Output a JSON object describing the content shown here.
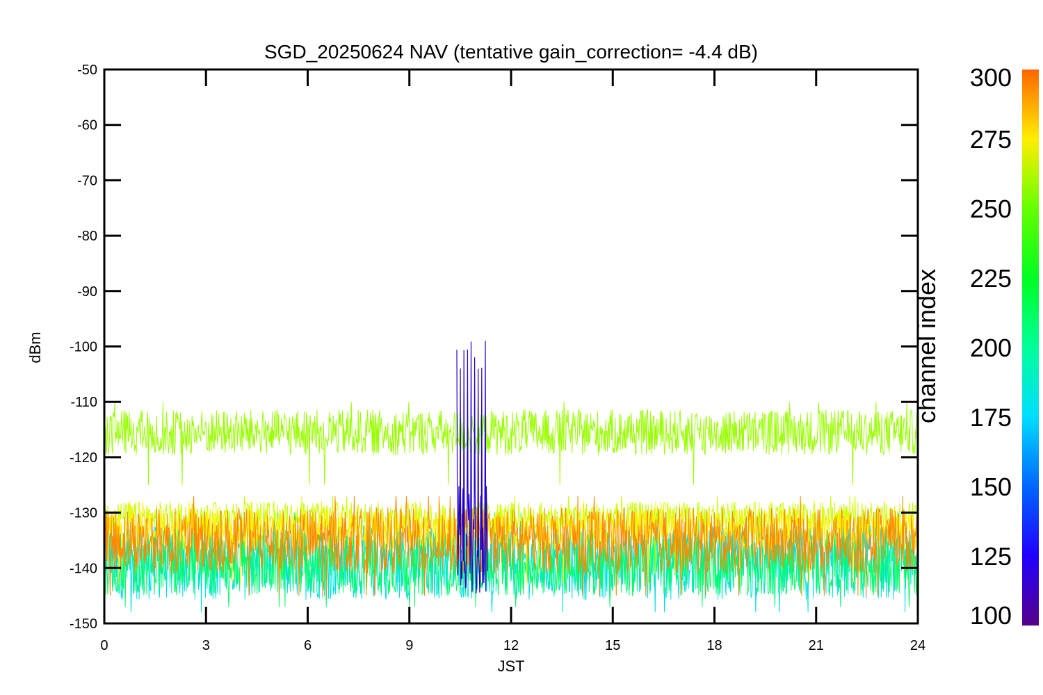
{
  "chart_data": {
    "type": "line",
    "title": "SGD_20250624 NAV (tentative gain_correction= -4.4 dB)",
    "xlabel": "JST",
    "ylabel": "dBm",
    "xlim": [
      0,
      24
    ],
    "ylim": [
      -150,
      -50
    ],
    "x_ticks": [
      "0",
      "3",
      "6",
      "9",
      "12",
      "15",
      "18",
      "21",
      "24"
    ],
    "x_tick_values": [
      0,
      3,
      6,
      9,
      12,
      15,
      18,
      21,
      24
    ],
    "y_ticks": [
      "-50",
      "-60",
      "-70",
      "-80",
      "-90",
      "-100",
      "-110",
      "-120",
      "-130",
      "-140",
      "-150"
    ],
    "y_tick_values": [
      -50,
      -60,
      -70,
      -80,
      -90,
      -100,
      -110,
      -120,
      -130,
      -140,
      -150
    ],
    "grid": false,
    "series": [
      {
        "channel_index": 258,
        "color": "#99ff00",
        "mean_dBm": -115.5,
        "min_dBm": -125,
        "max_dBm": -110,
        "x_range": [
          0,
          24
        ]
      },
      {
        "channel_index": 290,
        "color": "#ff8800",
        "mean_dBm": -135,
        "min_dBm": -145,
        "max_dBm": -127,
        "x_range": [
          0,
          24
        ]
      },
      {
        "channel_index": 262,
        "color": "#ccff00",
        "mean_dBm": -131,
        "min_dBm": -141,
        "max_dBm": -127,
        "x_range": [
          0,
          24
        ]
      },
      {
        "channel_index": 275,
        "color": "#ffee00",
        "mean_dBm": -133,
        "min_dBm": -143,
        "max_dBm": -128,
        "x_range": [
          0,
          24
        ]
      },
      {
        "channel_index": 180,
        "color": "#00e0e0",
        "mean_dBm": -139,
        "min_dBm": -148,
        "max_dBm": -130,
        "x_range": [
          0,
          24
        ]
      },
      {
        "channel_index": 220,
        "color": "#00ff66",
        "mean_dBm": -139,
        "min_dBm": -147,
        "max_dBm": -130,
        "x_range": [
          0,
          24
        ]
      },
      {
        "channel_index": 125,
        "color": "#2200cc",
        "mean_dBm": -135,
        "min_dBm": -148,
        "max_dBm": -105,
        "x_range": [
          10.4,
          11.3
        ],
        "note_visible": false
      }
    ],
    "colorbar": {
      "title": "channel index",
      "min": 100,
      "max": 300,
      "ticks": [
        "100",
        "125",
        "150",
        "175",
        "200",
        "225",
        "250",
        "275",
        "300"
      ],
      "tick_values": [
        100,
        125,
        150,
        175,
        200,
        225,
        250,
        275,
        300
      ],
      "stops": [
        {
          "value": 100,
          "color": "#550088"
        },
        {
          "value": 125,
          "color": "#2200ff"
        },
        {
          "value": 150,
          "color": "#0066ff"
        },
        {
          "value": 175,
          "color": "#00ddff"
        },
        {
          "value": 200,
          "color": "#00ff99"
        },
        {
          "value": 225,
          "color": "#00ff22"
        },
        {
          "value": 250,
          "color": "#66ff00"
        },
        {
          "value": 275,
          "color": "#ffee00"
        },
        {
          "value": 300,
          "color": "#ff6600"
        }
      ]
    }
  }
}
